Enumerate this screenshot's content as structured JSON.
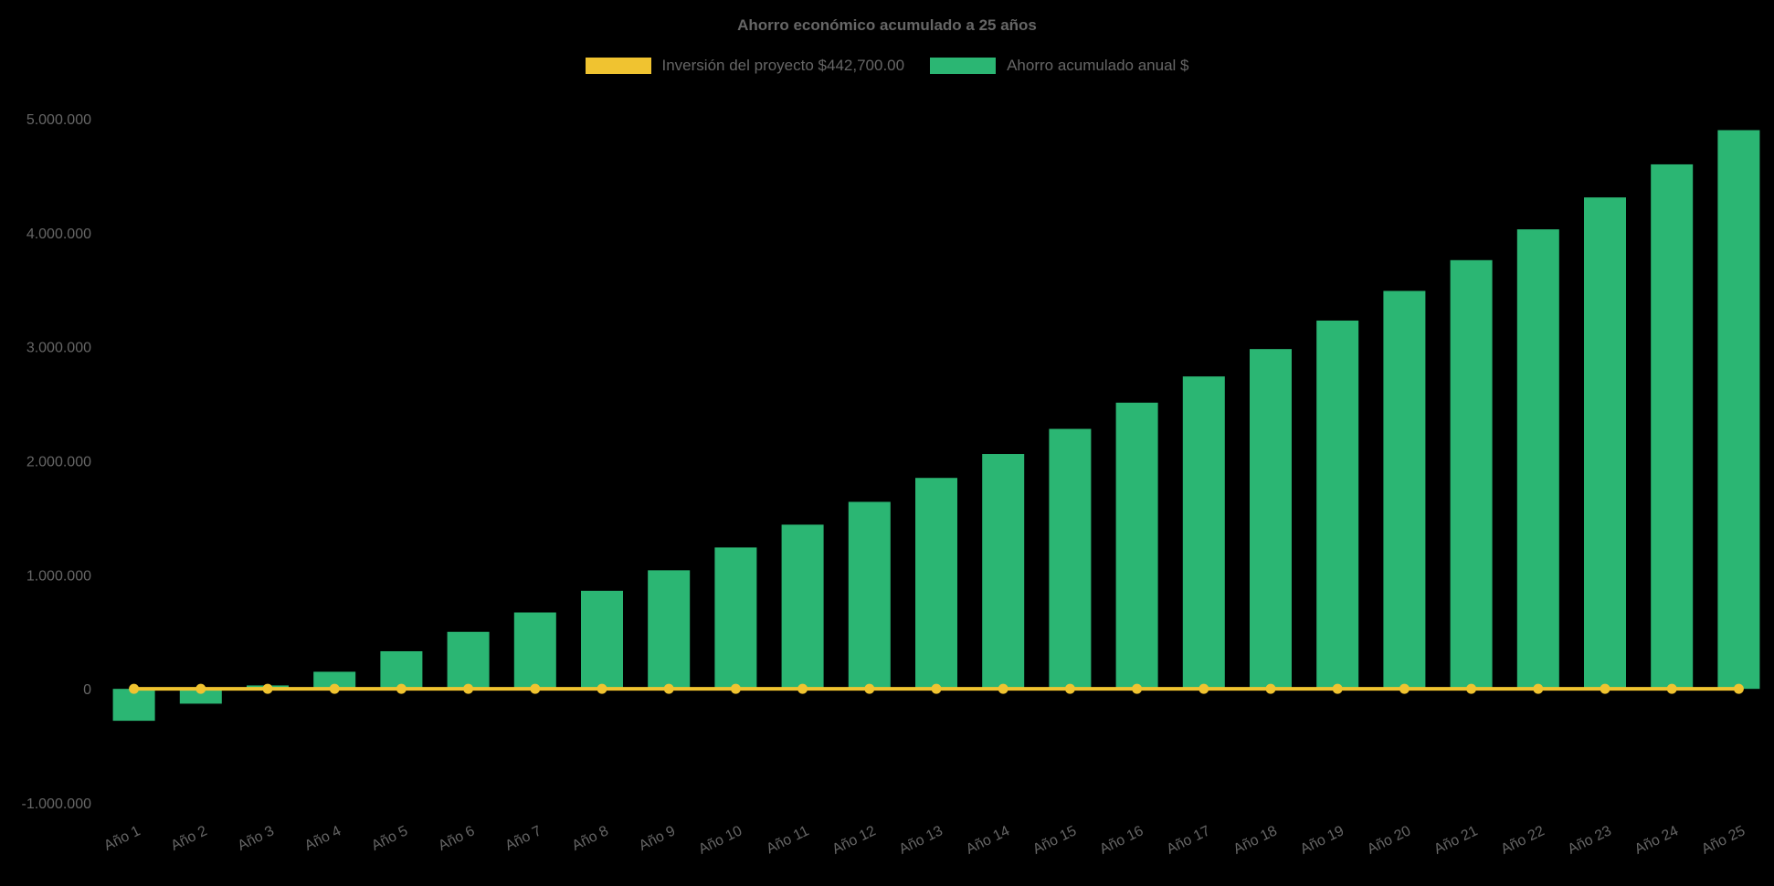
{
  "page": {
    "background_color": "#000000",
    "text_color": "#666666"
  },
  "chart_data": {
    "type": "bar",
    "title": "Ahorro económico acumulado a 25 años",
    "legend_position": "top",
    "grid": false,
    "ylim": [
      -1000000,
      5000000
    ],
    "categories": [
      "Año 1",
      "Año 2",
      "Año 3",
      "Año 4",
      "Año 5",
      "Año 6",
      "Año 7",
      "Año 8",
      "Año 9",
      "Año 10",
      "Año 11",
      "Año 12",
      "Año 13",
      "Año 14",
      "Año 15",
      "Año 16",
      "Año 17",
      "Año 18",
      "Año 19",
      "Año 20",
      "Año 21",
      "Año 22",
      "Año 23",
      "Año 24",
      "Año 25"
    ],
    "y_ticks": {
      "labels": [
        "5.000.000",
        "4.000.000",
        "3.000.000",
        "2.000.000",
        "1.000.000",
        "0",
        "-1.000.000"
      ],
      "values": [
        5000000,
        4000000,
        3000000,
        2000000,
        1000000,
        0,
        -1000000
      ]
    },
    "series": [
      {
        "name": "Inversión del proyecto $442,700.00",
        "type": "line",
        "color": "#f0c330",
        "values": [
          0,
          0,
          0,
          0,
          0,
          0,
          0,
          0,
          0,
          0,
          0,
          0,
          0,
          0,
          0,
          0,
          0,
          0,
          0,
          0,
          0,
          0,
          0,
          0,
          0
        ]
      },
      {
        "name": "Ahorro acumulado anual $",
        "type": "bar",
        "color": "#2bb673",
        "values": [
          -280000,
          -130000,
          30000,
          150000,
          330000,
          500000,
          670000,
          860000,
          1040000,
          1240000,
          1440000,
          1640000,
          1850000,
          2060000,
          2280000,
          2510000,
          2740000,
          2980000,
          3230000,
          3490000,
          3760000,
          4030000,
          4310000,
          4600000,
          4900000
        ]
      }
    ]
  }
}
